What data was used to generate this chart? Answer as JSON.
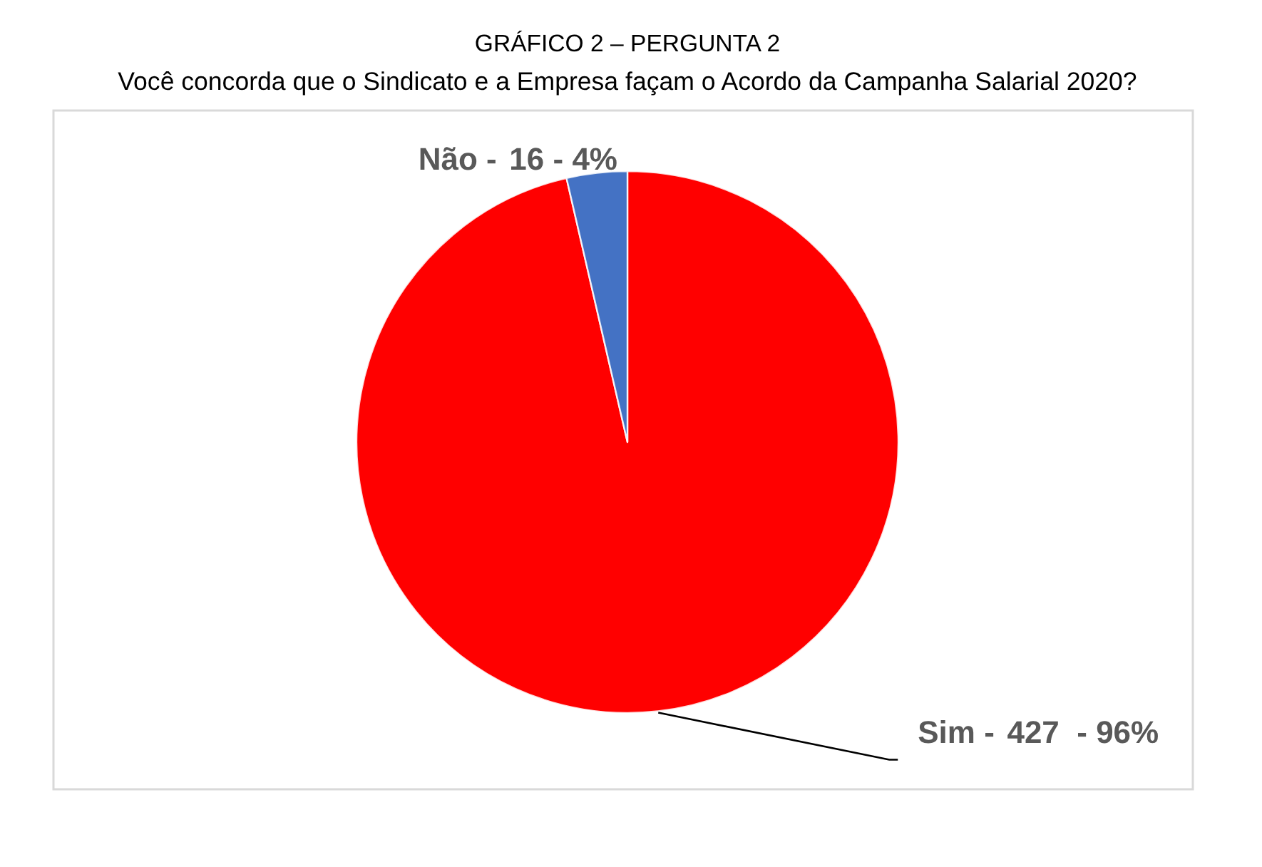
{
  "chart_data": {
    "type": "pie",
    "title": "GRÁFICO 2 – PERGUNTA 2",
    "subtitle": "Você concorda que o Sindicato e a Empresa façam o Acordo da Campanha Salarial 2020?",
    "categories": [
      "Sim -",
      "Não -"
    ],
    "values": [
      427,
      16
    ],
    "colors": [
      "#ff0000",
      "#4472c4"
    ],
    "value_labels": [
      "427  - 96%",
      "16 - 4%"
    ]
  }
}
